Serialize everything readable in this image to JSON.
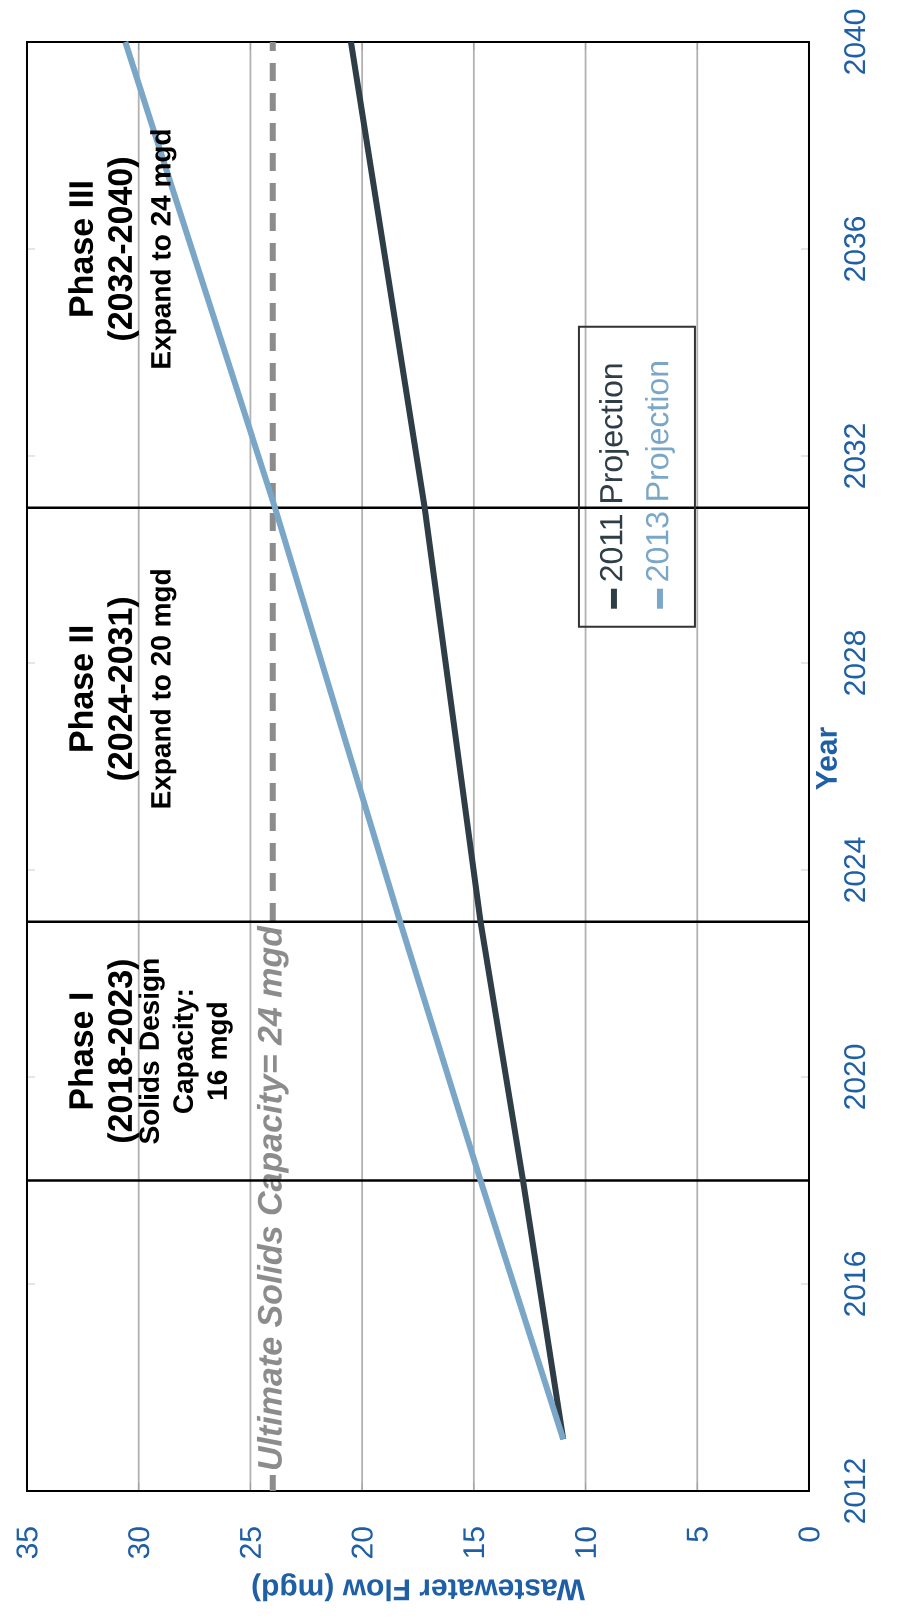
{
  "chart_data": {
    "type": "line",
    "xlabel": "Wastewater Flow (mgd)",
    "ylabel": "Year",
    "series": [
      {
        "name": "2011 Projection",
        "color": "#2f3e46",
        "x": [
          11,
          12.8,
          14.7,
          17.2,
          20.5
        ],
        "values": [
          2013,
          2018,
          2023,
          2031,
          2040
        ]
      },
      {
        "name": "2013 Projection",
        "color": "#7aa6c8",
        "x": [
          11,
          14.7,
          18.3,
          23.9,
          30.6
        ],
        "values": [
          2013,
          2018,
          2023,
          2031,
          2040
        ]
      }
    ],
    "xlim": [
      35,
      0
    ],
    "xticks": [
      35,
      30,
      25,
      20,
      15,
      10,
      5,
      0
    ],
    "ylim": [
      2012,
      2040
    ],
    "yticks": [
      2012,
      2016,
      2020,
      2024,
      2028,
      2032,
      2036,
      2040
    ],
    "grid": "x",
    "legend": "right",
    "marker": "none",
    "line_style": "solid",
    "ref_lines": [
      {
        "axis": "x",
        "value": 24,
        "label": "Ultimate Solids Capacity= 24 mgd",
        "color": "#8c8c8c",
        "line_style": "dashed"
      },
      {
        "axis": "y",
        "value": 2018,
        "label": null,
        "color": "#000000"
      },
      {
        "axis": "y",
        "value": 2023,
        "label": null,
        "color": "#000000"
      },
      {
        "axis": "y",
        "value": 2031,
        "label": null,
        "color": "#000000"
      }
    ],
    "annotations": [
      "Phase I",
      "(2018-2023)",
      "Solids Design Capacity: 16 mgd",
      "Phase II",
      "(2024-2031)",
      "Expand to 20 mgd",
      "Phase III",
      "(2032-2040)",
      "Expand to 24 mgd"
    ]
  }
}
